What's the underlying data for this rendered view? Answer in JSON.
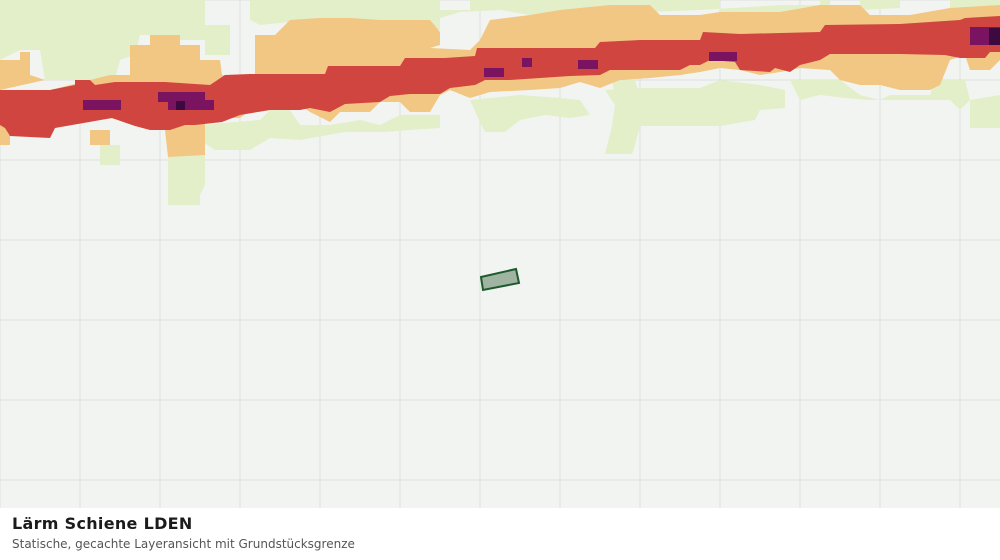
{
  "layer": {
    "title": "Lärm Schiene LDEN",
    "subtitle": "Statische, gecachte Layeransicht mit Grundstücksgrenze"
  },
  "colors": {
    "background": "#f2f4f2",
    "grid": "#dcdfdc",
    "band_light": "#e3efc9",
    "band_medium": "#f2c683",
    "band_high": "#d0453f",
    "band_very_high": "#7a1460",
    "band_extreme": "#3d0a3f",
    "parcel_fill": "#9fb5a2",
    "parcel_stroke": "#1f5a2e"
  }
}
